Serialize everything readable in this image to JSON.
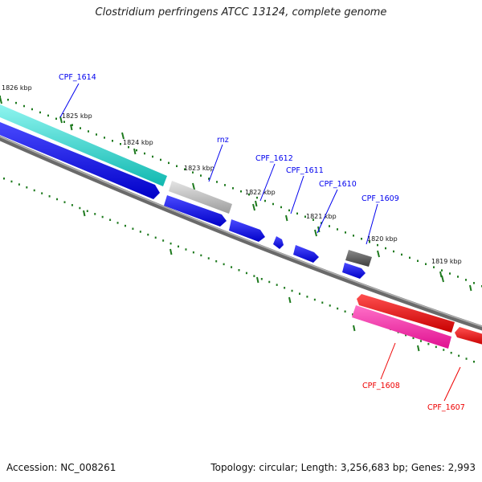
{
  "title": "Clostridium perfringens ATCC 13124, complete genome",
  "footer": {
    "accession": "Accession: NC_008261",
    "summary": "Topology: circular; Length: 3,256,683 bp; Genes: 2,993"
  },
  "colors": {
    "forward_gene": "#0000ee",
    "reverse_gene": "#ee0000",
    "tick": "#1e7a1e",
    "backbone": "#808080"
  },
  "scale_labels": [
    {
      "text": "1826 kbp"
    },
    {
      "text": "1825 kbp"
    },
    {
      "text": "1824 kbp"
    },
    {
      "text": "1823 kbp"
    },
    {
      "text": "1822 kbp"
    },
    {
      "text": "1821 kbp"
    },
    {
      "text": "1820 kbp"
    },
    {
      "text": "1819 kbp"
    }
  ],
  "gene_labels": [
    {
      "text": "CPF_1614",
      "strand": "forward"
    },
    {
      "text": "rnz",
      "strand": "forward"
    },
    {
      "text": "CPF_1612",
      "strand": "forward"
    },
    {
      "text": "CPF_1611",
      "strand": "forward"
    },
    {
      "text": "CPF_1610",
      "strand": "forward"
    },
    {
      "text": "CPF_1609",
      "strand": "forward"
    },
    {
      "text": "CPF_1608",
      "strand": "reverse"
    },
    {
      "text": "CPF_1607",
      "strand": "reverse"
    }
  ]
}
